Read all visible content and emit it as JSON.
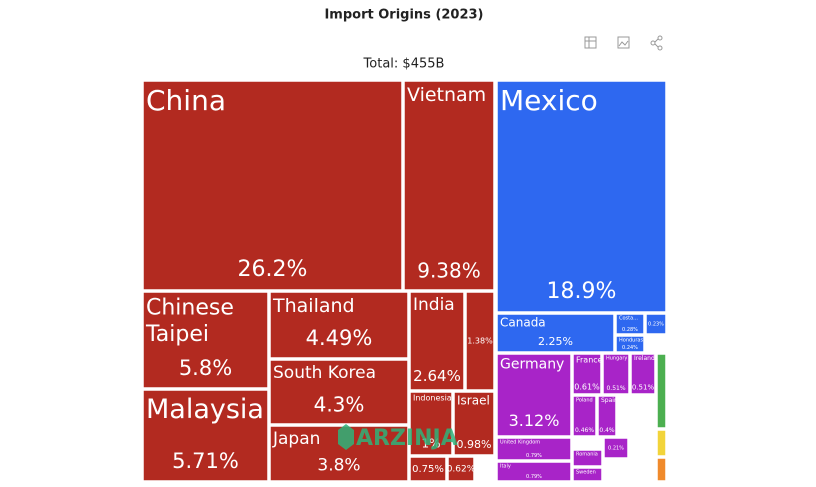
{
  "chart_data": {
    "type": "treemap",
    "title": "Import Origins (2023)",
    "subtitle": "Total: $455B",
    "watermark": "ARZINJA",
    "categories": [
      "China",
      "Vietnam",
      "Mexico",
      "Chinese Taipei",
      "Malaysia",
      "Thailand",
      "South Korea",
      "Japan",
      "India",
      null,
      "Indonesia",
      "Israel",
      null,
      null,
      "Canada",
      "Costa...",
      "Honduras",
      null,
      "Germany",
      "France",
      "Hungary",
      "Ireland",
      "Poland",
      "Spain",
      null,
      "United Kingdom",
      "Italy",
      "Romania",
      "Sweden",
      null,
      null,
      null
    ],
    "values": [
      26.2,
      9.38,
      18.9,
      5.8,
      5.71,
      4.49,
      4.3,
      3.8,
      2.64,
      1.38,
      1,
      0.98,
      0.75,
      0.62,
      2.25,
      0.28,
      0.24,
      0.23,
      3.12,
      0.61,
      0.51,
      0.51,
      0.46,
      0.4,
      0.21,
      0.79,
      0.79,
      0.3,
      0.3,
      0.6,
      0.2,
      0.2
    ],
    "value_labels": [
      "26.2%",
      "9.38%",
      "18.9%",
      "5.8%",
      "5.71%",
      "4.49%",
      "4.3%",
      "3.8%",
      "2.64%",
      "1.38%",
      "1%",
      "0.98%",
      "0.75%",
      "0.62%",
      "2.25%",
      "0.28%",
      "0.24%",
      "0.23%",
      "3.12%",
      "0.61%",
      "0.51%",
      "0.51%",
      "0.46%",
      "0.4%",
      "0.21%",
      "0.79%",
      "0.79%",
      null,
      null,
      null,
      null,
      null
    ],
    "colors": [
      "#b22a20",
      "#b22a20",
      "#2e68f0",
      "#b22a20",
      "#b22a20",
      "#b22a20",
      "#b22a20",
      "#b22a20",
      "#b22a20",
      "#b22a20",
      "#b22a20",
      "#b22a20",
      "#b22a20",
      "#b22a20",
      "#2e68f0",
      "#2e68f0",
      "#2e68f0",
      "#2e68f0",
      "#a824c8",
      "#a824c8",
      "#a824c8",
      "#a824c8",
      "#a824c8",
      "#a824c8",
      "#a824c8",
      "#a824c8",
      "#a824c8",
      "#a824c8",
      "#a824c8",
      "#4caf50",
      "#f2d43a",
      "#f08a2b"
    ]
  }
}
